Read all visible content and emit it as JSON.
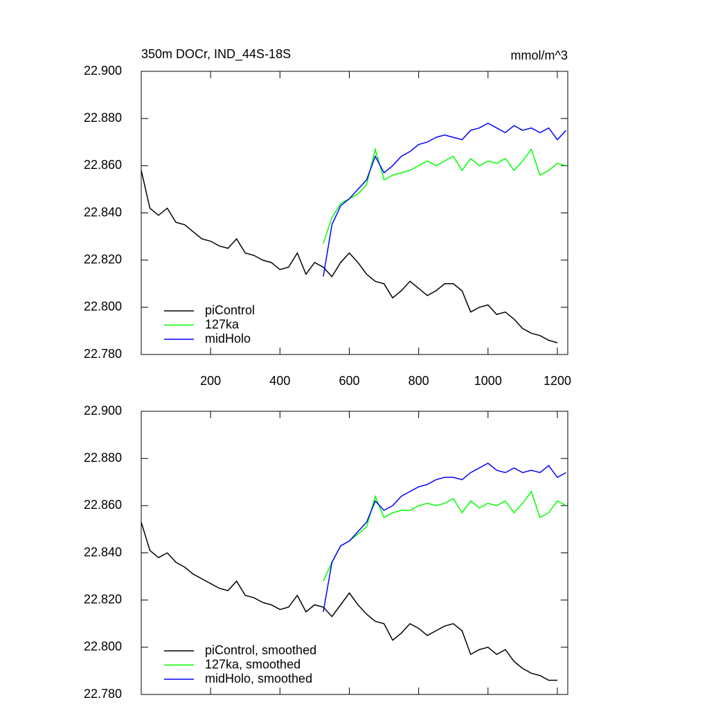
{
  "chart_data": [
    {
      "type": "line",
      "title": "350m DOCr, IND_44S-18S",
      "units": "mmol/m^3",
      "xlim": [
        0,
        1230
      ],
      "xticks": [
        200,
        400,
        600,
        800,
        1000,
        1200
      ],
      "xticklabels": true,
      "ylim": [
        22.78,
        22.9
      ],
      "yticks": [
        {
          "value": 22.78,
          "label": "22.780"
        },
        {
          "value": 22.8,
          "label": "22.800"
        },
        {
          "value": 22.82,
          "label": "22.820"
        },
        {
          "value": 22.84,
          "label": "22.840"
        },
        {
          "value": 22.86,
          "label": "22.860"
        },
        {
          "value": 22.88,
          "label": "22.880"
        },
        {
          "value": 22.9,
          "label": "22.900"
        }
      ],
      "legend": "lower left",
      "series": [
        {
          "name": "piControl",
          "color": "#000000",
          "x": [
            0,
            25,
            50,
            75,
            100,
            125,
            150,
            175,
            200,
            225,
            250,
            275,
            300,
            325,
            350,
            375,
            400,
            425,
            450,
            475,
            500,
            525,
            550,
            575,
            600,
            625,
            650,
            675,
            700,
            725,
            750,
            775,
            800,
            825,
            850,
            875,
            900,
            925,
            950,
            975,
            1000,
            1025,
            1050,
            1075,
            1100,
            1125,
            1150,
            1175,
            1200
          ],
          "values": [
            22.858,
            22.842,
            22.839,
            22.842,
            22.836,
            22.835,
            22.832,
            22.829,
            22.828,
            22.826,
            22.825,
            22.829,
            22.823,
            22.822,
            22.82,
            22.819,
            22.816,
            22.817,
            22.823,
            22.814,
            22.819,
            22.817,
            22.813,
            22.819,
            22.823,
            22.819,
            22.814,
            22.811,
            22.81,
            22.804,
            22.807,
            22.811,
            22.808,
            22.805,
            22.807,
            22.81,
            22.81,
            22.807,
            22.798,
            22.8,
            22.801,
            22.797,
            22.798,
            22.795,
            22.791,
            22.789,
            22.788,
            22.786,
            22.785
          ]
        },
        {
          "name": "127ka",
          "color": "#00ff00",
          "x": [
            525,
            550,
            575,
            600,
            625,
            650,
            675,
            700,
            725,
            750,
            775,
            800,
            825,
            850,
            875,
            900,
            925,
            950,
            975,
            1000,
            1025,
            1050,
            1075,
            1100,
            1125,
            1150,
            1175,
            1200,
            1225
          ],
          "values": [
            22.827,
            22.838,
            22.844,
            22.846,
            22.848,
            22.852,
            22.867,
            22.854,
            22.856,
            22.857,
            22.858,
            22.86,
            22.862,
            22.86,
            22.862,
            22.864,
            22.858,
            22.863,
            22.86,
            22.862,
            22.861,
            22.863,
            22.858,
            22.862,
            22.867,
            22.856,
            22.858,
            22.861,
            22.86
          ]
        },
        {
          "name": "midHolo",
          "color": "#0000ff",
          "x": [
            525,
            550,
            575,
            600,
            625,
            650,
            675,
            700,
            725,
            750,
            775,
            800,
            825,
            850,
            875,
            900,
            925,
            950,
            975,
            1000,
            1025,
            1050,
            1075,
            1100,
            1125,
            1150,
            1175,
            1200,
            1225
          ],
          "values": [
            22.813,
            22.835,
            22.843,
            22.846,
            22.85,
            22.854,
            22.864,
            22.857,
            22.86,
            22.864,
            22.866,
            22.869,
            22.87,
            22.872,
            22.873,
            22.872,
            22.871,
            22.875,
            22.876,
            22.878,
            22.876,
            22.874,
            22.877,
            22.875,
            22.876,
            22.874,
            22.876,
            22.871,
            22.875
          ]
        }
      ]
    },
    {
      "type": "line",
      "xlim": [
        0,
        1230
      ],
      "xticks": [
        200,
        400,
        600,
        800,
        1000,
        1200
      ],
      "xticklabels": false,
      "ylim": [
        22.78,
        22.9
      ],
      "yticks": [
        {
          "value": 22.78,
          "label": "22.780"
        },
        {
          "value": 22.8,
          "label": "22.800"
        },
        {
          "value": 22.82,
          "label": "22.820"
        },
        {
          "value": 22.84,
          "label": "22.840"
        },
        {
          "value": 22.86,
          "label": "22.860"
        },
        {
          "value": 22.88,
          "label": "22.880"
        },
        {
          "value": 22.9,
          "label": "22.900"
        }
      ],
      "legend": "lower left",
      "series": [
        {
          "name": "piControl, smoothed",
          "color": "#000000",
          "x": [
            0,
            25,
            50,
            75,
            100,
            125,
            150,
            175,
            200,
            225,
            250,
            275,
            300,
            325,
            350,
            375,
            400,
            425,
            450,
            475,
            500,
            525,
            550,
            575,
            600,
            625,
            650,
            675,
            700,
            725,
            750,
            775,
            800,
            825,
            850,
            875,
            900,
            925,
            950,
            975,
            1000,
            1025,
            1050,
            1075,
            1100,
            1125,
            1150,
            1175,
            1200
          ],
          "values": [
            22.853,
            22.841,
            22.838,
            22.84,
            22.836,
            22.834,
            22.831,
            22.829,
            22.827,
            22.825,
            22.824,
            22.828,
            22.822,
            22.821,
            22.819,
            22.818,
            22.816,
            22.817,
            22.822,
            22.815,
            22.818,
            22.817,
            22.813,
            22.818,
            22.823,
            22.818,
            22.814,
            22.811,
            22.81,
            22.803,
            22.806,
            22.81,
            22.808,
            22.805,
            22.807,
            22.809,
            22.81,
            22.807,
            22.797,
            22.799,
            22.8,
            22.797,
            22.799,
            22.794,
            22.791,
            22.789,
            22.788,
            22.786,
            22.786
          ]
        },
        {
          "name": "127ka, smoothed",
          "color": "#00ff00",
          "x": [
            525,
            550,
            575,
            600,
            625,
            650,
            675,
            700,
            725,
            750,
            775,
            800,
            825,
            850,
            875,
            900,
            925,
            950,
            975,
            1000,
            1025,
            1050,
            1075,
            1100,
            1125,
            1150,
            1175,
            1200,
            1225
          ],
          "values": [
            22.828,
            22.836,
            22.843,
            22.845,
            22.848,
            22.851,
            22.864,
            22.855,
            22.857,
            22.858,
            22.858,
            22.86,
            22.861,
            22.86,
            22.861,
            22.863,
            22.857,
            22.862,
            22.859,
            22.861,
            22.86,
            22.862,
            22.857,
            22.861,
            22.866,
            22.855,
            22.857,
            22.862,
            22.86
          ]
        },
        {
          "name": "midHolo, smoothed",
          "color": "#0000ff",
          "x": [
            525,
            550,
            575,
            600,
            625,
            650,
            675,
            700,
            725,
            750,
            775,
            800,
            825,
            850,
            875,
            900,
            925,
            950,
            975,
            1000,
            1025,
            1050,
            1075,
            1100,
            1125,
            1150,
            1175,
            1200,
            1225
          ],
          "values": [
            22.815,
            22.836,
            22.843,
            22.845,
            22.849,
            22.853,
            22.862,
            22.858,
            22.86,
            22.864,
            22.866,
            22.868,
            22.869,
            22.871,
            22.872,
            22.872,
            22.871,
            22.874,
            22.876,
            22.878,
            22.875,
            22.874,
            22.876,
            22.874,
            22.875,
            22.874,
            22.877,
            22.872,
            22.874
          ]
        }
      ]
    }
  ]
}
